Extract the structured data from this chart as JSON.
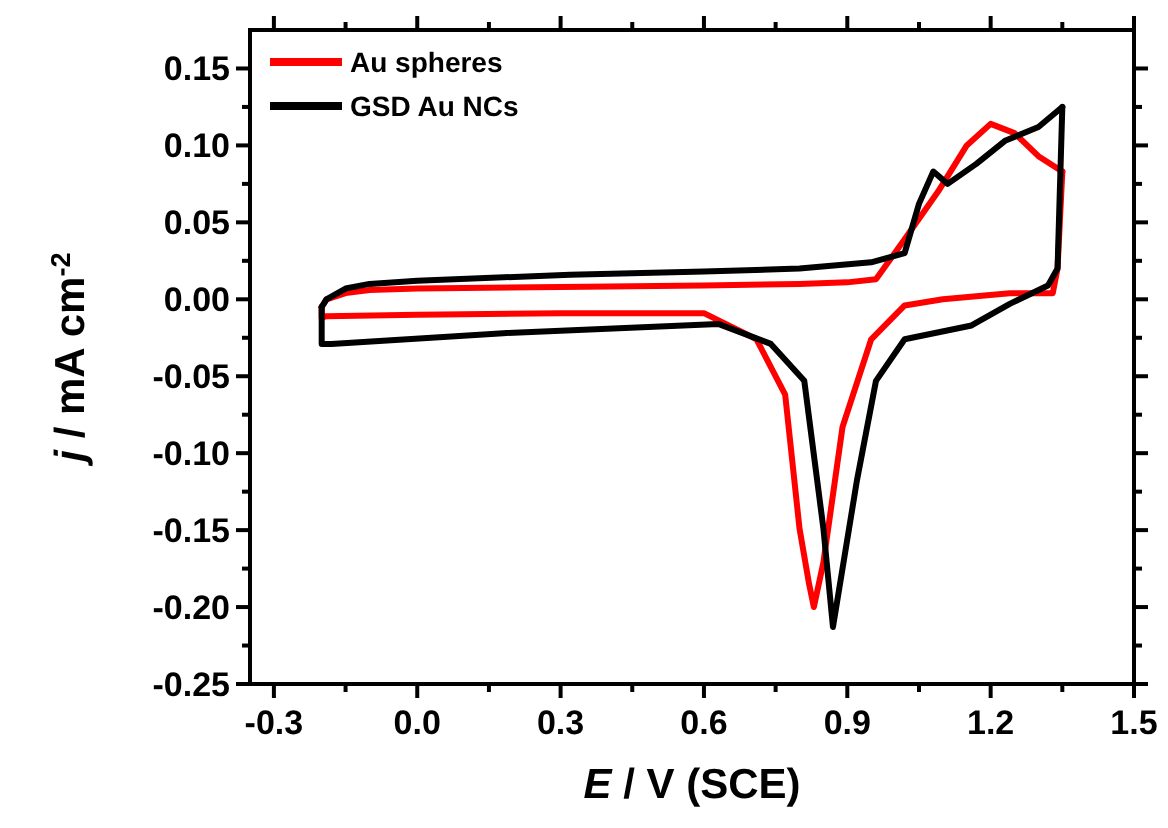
{
  "chart_data": {
    "type": "line",
    "xlabel": "E / V (SCE)",
    "ylabel": "j / mA cm$^{-2}$",
    "xlim": [
      -0.35,
      1.5
    ],
    "ylim": [
      -0.25,
      0.175
    ],
    "xticks": [
      -0.3,
      {
        "value": -0.15,
        "label": null
      },
      "0.0",
      {
        "value": 0.15,
        "label": null
      },
      0.3,
      {
        "value": 0.45,
        "label": null
      },
      0.6,
      {
        "value": 0.75,
        "label": null
      },
      0.9,
      {
        "value": 1.05,
        "label": null
      },
      1.2,
      {
        "value": 1.35,
        "label": null
      },
      "1.5"
    ],
    "yticks": [
      {
        "value": -0.25,
        "label": "-0.25"
      },
      {
        "value": -0.225,
        "label": null
      },
      {
        "value": -0.2,
        "label": "-0.20"
      },
      {
        "value": -0.175,
        "label": null
      },
      {
        "value": -0.15,
        "label": "-0.15"
      },
      {
        "value": -0.125,
        "label": null
      },
      {
        "value": -0.1,
        "label": "-0.10"
      },
      {
        "value": -0.075,
        "label": null
      },
      {
        "value": -0.05,
        "label": "-0.05"
      },
      {
        "value": -0.025,
        "label": null
      },
      {
        "value": 0,
        "label": "0.00"
      },
      {
        "value": 0.025,
        "label": null
      },
      {
        "value": 0.05,
        "label": "0.05"
      },
      {
        "value": 0.075,
        "label": null
      },
      {
        "value": 0.1,
        "label": "0.10"
      },
      {
        "value": 0.125,
        "label": null
      },
      {
        "value": 0.15,
        "label": "0.15"
      }
    ],
    "legend": "top left",
    "grid": false,
    "marker": "none",
    "line_style": "solid",
    "series": [
      {
        "name": "Au spheres",
        "color": "#ff0000",
        "x": [
          -0.2,
          -0.19,
          -0.15,
          -0.1,
          0.0,
          0.3,
          0.6,
          0.8,
          0.9,
          0.96,
          1.02,
          1.09,
          1.15,
          1.2,
          1.25,
          1.3,
          1.35
        ],
        "values": [
          -0.005,
          0.0,
          0.004,
          0.006,
          0.007,
          0.008,
          0.009,
          0.01,
          0.011,
          0.013,
          0.039,
          0.07,
          0.1,
          0.114,
          0.108,
          0.093,
          0.083
        ]
      },
      {
        "color": "#ff0000",
        "x": [
          1.35,
          1.34,
          1.33,
          1.24,
          1.1,
          1.02,
          0.95,
          0.89,
          0.85,
          0.83,
          0.82,
          0.8,
          0.77,
          0.71,
          0.6,
          0.3,
          0.0,
          -0.19,
          -0.2,
          -0.2
        ],
        "values": [
          0.083,
          0.02,
          0.004,
          0.004,
          0.0,
          -0.004,
          -0.026,
          -0.083,
          -0.171,
          -0.2,
          -0.185,
          -0.149,
          -0.062,
          -0.026,
          -0.009,
          -0.009,
          -0.01,
          -0.011,
          -0.012,
          -0.005
        ]
      },
      {
        "name": "GSD Au NCs",
        "color": "#000000",
        "x": [
          -0.2,
          -0.19,
          -0.15,
          -0.1,
          0.0,
          0.32,
          0.6,
          0.8,
          0.95,
          1.02,
          1.05,
          1.08,
          1.11,
          1.17,
          1.23,
          1.3,
          1.35
        ],
        "values": [
          -0.005,
          0.0,
          0.007,
          0.01,
          0.012,
          0.016,
          0.018,
          0.02,
          0.024,
          0.03,
          0.062,
          0.083,
          0.075,
          0.088,
          0.103,
          0.112,
          0.125
        ]
      },
      {
        "color": "#000000",
        "x": [
          1.35,
          1.34,
          1.32,
          1.24,
          1.16,
          1.02,
          0.96,
          0.92,
          0.87,
          0.85,
          0.81,
          0.74,
          0.63,
          0.18,
          -0.18,
          -0.2,
          -0.2
        ],
        "values": [
          0.125,
          0.02,
          0.009,
          -0.003,
          -0.017,
          -0.026,
          -0.053,
          -0.118,
          -0.213,
          -0.149,
          -0.053,
          -0.029,
          -0.016,
          -0.022,
          -0.029,
          -0.029,
          -0.005
        ]
      }
    ]
  }
}
